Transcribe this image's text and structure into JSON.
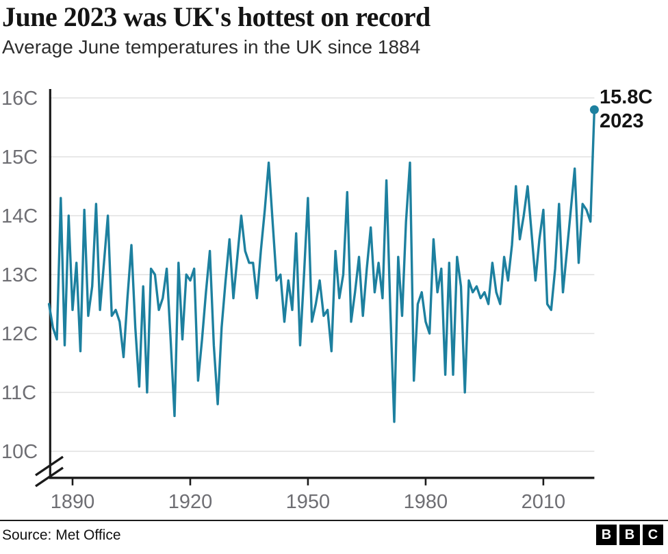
{
  "header": {
    "title": "June 2023 was UK's hottest on record",
    "subtitle": "Average June temperatures in the UK since 1884"
  },
  "chart_data": {
    "type": "line",
    "title": "June 2023 was UK's hottest on record",
    "subtitle": "Average June temperatures in the UK since 1884",
    "series_name": "UK average June temperature (C)",
    "start_year": 1884,
    "end_year": 2023,
    "x_range": [
      1884,
      2023
    ],
    "ylim": [
      10,
      16
    ],
    "grid": true,
    "legend": "none",
    "axis_break": true,
    "y_ticks": [
      {
        "value": 16,
        "label": "16C"
      },
      {
        "value": 15,
        "label": "15C"
      },
      {
        "value": 14,
        "label": "14C"
      },
      {
        "value": 13,
        "label": "13C"
      },
      {
        "value": 12,
        "label": "12C"
      },
      {
        "value": 11,
        "label": "11C"
      },
      {
        "value": 10,
        "label": "10C"
      }
    ],
    "x_ticks": [
      {
        "value": 1890,
        "label": "1890"
      },
      {
        "value": 1920,
        "label": "1920"
      },
      {
        "value": 1950,
        "label": "1950"
      },
      {
        "value": 1980,
        "label": "1980"
      },
      {
        "value": 2010,
        "label": "2010"
      }
    ],
    "values": [
      12.5,
      12.1,
      11.9,
      14.3,
      11.8,
      14.0,
      12.4,
      13.2,
      11.7,
      14.1,
      12.3,
      12.8,
      14.2,
      12.4,
      13.2,
      14.0,
      12.3,
      12.4,
      12.2,
      11.6,
      12.6,
      13.5,
      12.1,
      11.1,
      12.8,
      11.0,
      13.1,
      13.0,
      12.4,
      12.6,
      13.1,
      11.9,
      10.6,
      13.2,
      11.9,
      13.0,
      12.9,
      13.1,
      11.2,
      11.9,
      12.7,
      13.4,
      11.8,
      10.8,
      12.1,
      12.9,
      13.6,
      12.6,
      13.3,
      14.0,
      13.4,
      13.2,
      13.2,
      12.6,
      13.4,
      14.1,
      14.9,
      13.9,
      12.9,
      13.0,
      12.2,
      12.9,
      12.4,
      13.7,
      11.8,
      13.0,
      14.3,
      12.2,
      12.5,
      12.9,
      12.3,
      12.4,
      11.7,
      13.4,
      12.6,
      13.0,
      14.4,
      12.2,
      12.7,
      13.3,
      12.3,
      13.1,
      13.8,
      12.7,
      13.2,
      12.6,
      14.6,
      12.4,
      10.5,
      13.3,
      12.3,
      13.9,
      14.9,
      11.2,
      12.5,
      12.7,
      12.2,
      12.0,
      13.6,
      12.7,
      13.1,
      11.3,
      13.2,
      11.3,
      13.3,
      12.8,
      11.0,
      12.9,
      12.7,
      12.8,
      12.6,
      12.7,
      12.5,
      13.2,
      12.7,
      12.5,
      13.3,
      12.9,
      13.5,
      14.5,
      13.6,
      14.0,
      14.5,
      13.7,
      12.9,
      13.6,
      14.1,
      12.5,
      12.4,
      13.1,
      14.2,
      12.7,
      13.4,
      14.1,
      14.8,
      13.2,
      14.2,
      14.1,
      13.9,
      15.8
    ],
    "annotation": {
      "value_label": "15.8C",
      "year_label": "2023",
      "year": 2023,
      "value": 15.8
    }
  },
  "colors": {
    "line": "#1d809f",
    "grid": "#d9d9d9",
    "axis": "#1a1a1a",
    "tick_text": "#6e6e73",
    "text": "#141414"
  },
  "footer": {
    "source": "Source: Met Office",
    "logo_letters": [
      "B",
      "B",
      "C"
    ]
  }
}
